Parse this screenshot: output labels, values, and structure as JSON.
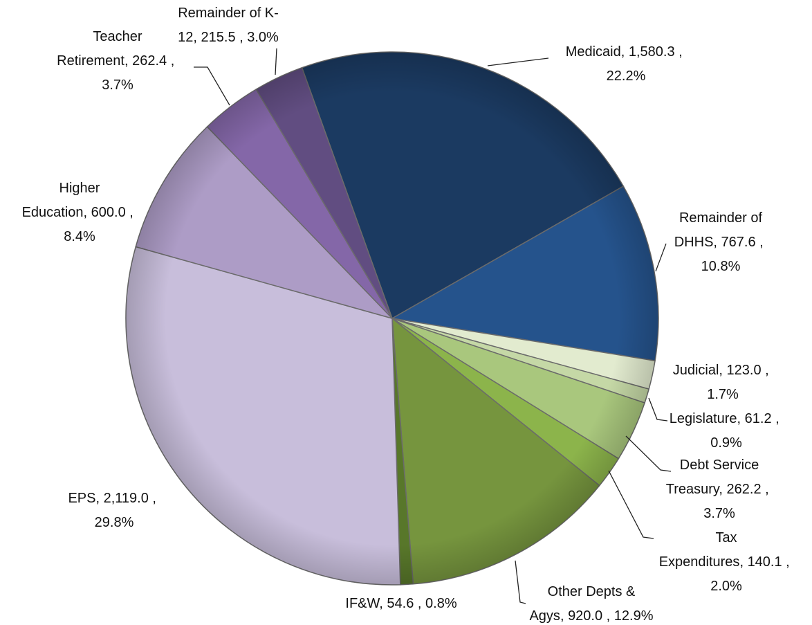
{
  "chart_data": {
    "type": "pie",
    "categories": [
      "Medicaid",
      "Remainder of DHHS",
      "Judicial",
      "Legislature",
      "Debt Service Treasury",
      "Tax Expenditures",
      "Other Depts & Agys",
      "IF&W",
      "EPS",
      "Higher Education",
      "Teacher Retirement",
      "Remainder of K-12"
    ],
    "values": [
      1580.3,
      767.6,
      123.0,
      61.2,
      262.2,
      140.1,
      920.0,
      54.6,
      2119.0,
      600.0,
      262.4,
      215.5
    ],
    "value_labels": [
      "1,580.3",
      "767.6",
      "123.0",
      "61.2",
      "262.2",
      "140.1",
      "920.0",
      "54.6",
      "2,119.0",
      "600.0",
      "262.4",
      "215.5"
    ],
    "percents": [
      22.2,
      10.8,
      1.7,
      0.9,
      3.7,
      2.0,
      12.9,
      0.8,
      29.8,
      8.4,
      3.7,
      3.0
    ],
    "percent_labels": [
      "22.2%",
      "10.8%",
      "1.7%",
      "0.9%",
      "3.7%",
      "2.0%",
      "12.9%",
      "0.8%",
      "29.8%",
      "8.4%",
      "3.7%",
      "3.0%"
    ],
    "label_separators": [
      ", ",
      " , "
    ],
    "colors": [
      "#1b3a61",
      "#25538c",
      "#e2ebcf",
      "#c5d8a6",
      "#a9c77d",
      "#8cb44b",
      "#76953e",
      "#58772a",
      "#c8bedb",
      "#ad9cc6",
      "#8467a8",
      "#614d81"
    ]
  }
}
